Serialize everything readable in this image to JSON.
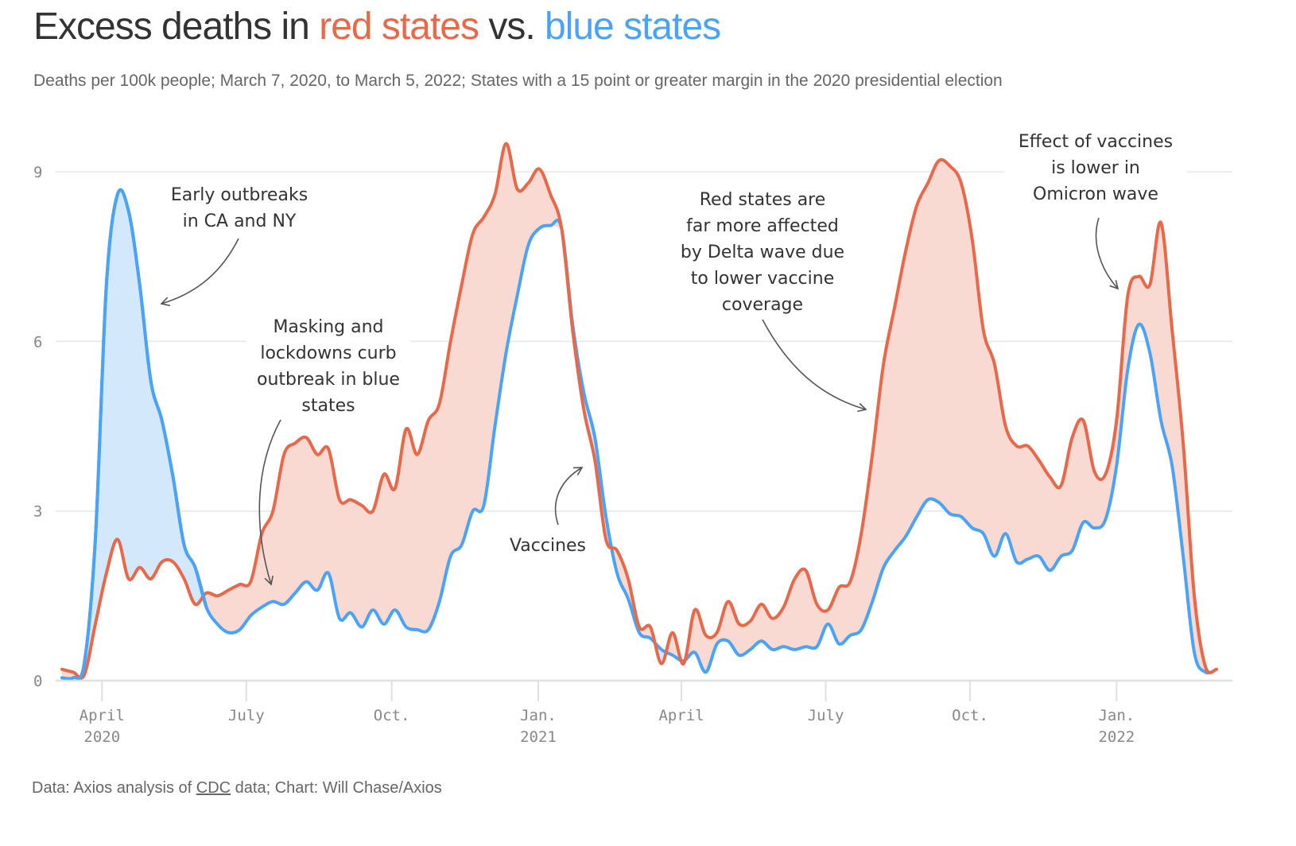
{
  "header": {
    "title_prefix": "Excess deaths in ",
    "title_red": "red states",
    "title_mid": " vs. ",
    "title_blue": "blue states",
    "subtitle": "Deaths per 100k people; March 7, 2020, to March 5, 2022; States with a 15 point or greater margin in the 2020 presidential election"
  },
  "footer": {
    "prefix": "Data: Axios analysis of ",
    "link": "CDC",
    "suffix": " data; Chart: Will Chase/Axios"
  },
  "colors": {
    "red": "#e8694a",
    "blue": "#4ba3f5",
    "red_fill": "#f8dad3",
    "blue_fill": "#d4e8fb"
  },
  "chart_data": {
    "type": "area",
    "title": "Excess deaths in red states vs. blue states",
    "subtitle": "Deaths per 100k people; March 7, 2020, to March 5, 2022; States with a 15 point or greater margin in the 2020 presidential election",
    "xlabel": "",
    "ylabel": "Deaths per 100k people",
    "x_start": "2020-03-07",
    "x_end": "2022-03-05",
    "x_interval": "weekly",
    "ylim": [
      0,
      9.6
    ],
    "yticks": [
      0,
      3,
      6,
      9
    ],
    "grid": true,
    "xticks": [
      {
        "week": 3.6,
        "label": "April",
        "sublabel": "2020"
      },
      {
        "week": 16.6,
        "label": "July",
        "sublabel": ""
      },
      {
        "week": 29.7,
        "label": "Oct.",
        "sublabel": ""
      },
      {
        "week": 42.9,
        "label": "Jan.",
        "sublabel": "2021"
      },
      {
        "week": 55.8,
        "label": "April",
        "sublabel": ""
      },
      {
        "week": 68.8,
        "label": "July",
        "sublabel": ""
      },
      {
        "week": 81.8,
        "label": "Oct.",
        "sublabel": ""
      },
      {
        "week": 95.0,
        "label": "Jan.",
        "sublabel": "2022"
      }
    ],
    "series": [
      {
        "name": "Red states",
        "color": "#e8694a",
        "values": [
          0.2,
          0.15,
          0.1,
          1.0,
          1.9,
          2.5,
          1.8,
          2.0,
          1.8,
          2.1,
          2.1,
          1.8,
          1.35,
          1.55,
          1.5,
          1.6,
          1.7,
          1.75,
          2.6,
          3.0,
          4.0,
          4.2,
          4.3,
          4.0,
          4.1,
          3.2,
          3.2,
          3.1,
          3.0,
          3.65,
          3.4,
          4.45,
          4.0,
          4.6,
          4.9,
          6.0,
          7.0,
          7.9,
          8.2,
          8.6,
          9.5,
          8.7,
          8.8,
          9.05,
          8.6,
          8.0,
          6.2,
          4.8,
          3.9,
          2.5,
          2.3,
          1.8,
          0.95,
          0.95,
          0.3,
          0.85,
          0.3,
          1.25,
          0.8,
          0.85,
          1.4,
          1.0,
          1.05,
          1.35,
          1.1,
          1.3,
          1.8,
          1.95,
          1.35,
          1.25,
          1.65,
          1.75,
          2.6,
          4.0,
          5.6,
          6.6,
          7.6,
          8.4,
          8.8,
          9.2,
          9.1,
          8.8,
          7.8,
          6.2,
          5.6,
          4.5,
          4.15,
          4.15,
          3.9,
          3.6,
          3.45,
          4.3,
          4.6,
          3.7,
          3.65,
          4.6,
          6.8,
          7.15,
          7.0,
          8.1,
          6.2,
          4.2,
          1.5,
          0.25,
          0.2
        ]
      },
      {
        "name": "Blue states",
        "color": "#4ba3f5",
        "values": [
          0.05,
          0.05,
          0.3,
          2.5,
          7.0,
          8.6,
          8.3,
          7.0,
          5.3,
          4.6,
          3.6,
          2.4,
          2.0,
          1.3,
          1.0,
          0.85,
          0.9,
          1.15,
          1.3,
          1.4,
          1.35,
          1.55,
          1.75,
          1.6,
          1.9,
          1.1,
          1.2,
          0.95,
          1.25,
          1.0,
          1.25,
          0.95,
          0.9,
          0.9,
          1.4,
          2.2,
          2.4,
          3.0,
          3.1,
          4.5,
          5.8,
          6.8,
          7.7,
          8.0,
          8.05,
          8.0,
          6.3,
          5.1,
          4.3,
          2.9,
          1.9,
          1.45,
          0.85,
          0.75,
          0.55,
          0.45,
          0.35,
          0.5,
          0.15,
          0.65,
          0.7,
          0.45,
          0.55,
          0.7,
          0.55,
          0.6,
          0.55,
          0.6,
          0.6,
          1.0,
          0.65,
          0.8,
          0.9,
          1.4,
          2.0,
          2.3,
          2.55,
          2.9,
          3.2,
          3.15,
          2.95,
          2.9,
          2.7,
          2.6,
          2.2,
          2.6,
          2.1,
          2.15,
          2.2,
          1.95,
          2.2,
          2.3,
          2.8,
          2.7,
          2.85,
          3.8,
          5.5,
          6.3,
          5.8,
          4.6,
          3.8,
          2.2,
          0.5,
          0.15,
          0.2
        ]
      }
    ],
    "annotations": [
      {
        "id": "early-outbreaks",
        "lines": [
          "Early outbreaks",
          "in CA and NY"
        ],
        "points_to_week": 9,
        "points_to_value": 6.7
      },
      {
        "id": "masking-lockdowns",
        "lines": [
          "Masking and",
          "lockdowns curb",
          "outbreak in blue",
          "states"
        ],
        "points_to_week": 19,
        "points_to_value": 1.7
      },
      {
        "id": "vaccines",
        "lines": [
          "Vaccines"
        ],
        "points_to_week": 47,
        "points_to_value": 3.8
      },
      {
        "id": "delta-wave",
        "lines": [
          "Red states are",
          "far more affected",
          "by Delta wave due",
          "to lower vaccine",
          "coverage"
        ],
        "points_to_week": 72.5,
        "points_to_value": 4.8
      },
      {
        "id": "omicron-wave",
        "lines": [
          "Effect of vaccines",
          "is lower in",
          "Omicron wave"
        ],
        "points_to_week": 95.2,
        "points_to_value": 6.9
      }
    ]
  }
}
